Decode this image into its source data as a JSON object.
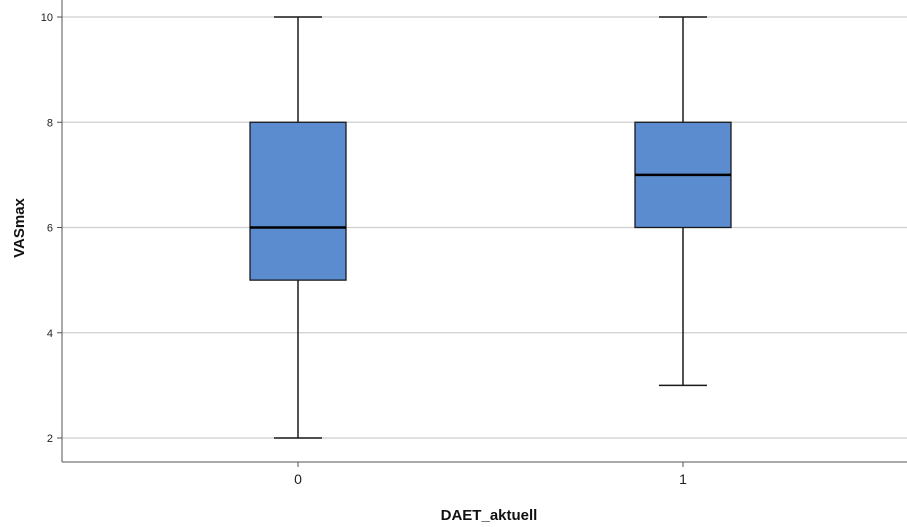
{
  "chart_data": {
    "type": "box",
    "title": "",
    "xlabel": "DAET_aktuell",
    "ylabel": "VASmax",
    "ylim": [
      1.6,
      10.3
    ],
    "yticks": [
      "2",
      "4",
      "6",
      "8",
      "10"
    ],
    "grid": true,
    "categories": [
      "0",
      "1"
    ],
    "boxes": [
      {
        "category": "0",
        "min": 2,
        "q1": 5,
        "median": 6,
        "q3": 8,
        "max": 10
      },
      {
        "category": "1",
        "min": 3,
        "q1": 6,
        "median": 7,
        "q3": 8,
        "max": 10
      }
    ],
    "colors": {
      "box_fill": "#5b8ccf",
      "box_stroke": "#1a1a1a",
      "grid": "#cfcfcf",
      "axis": "#555555"
    }
  }
}
